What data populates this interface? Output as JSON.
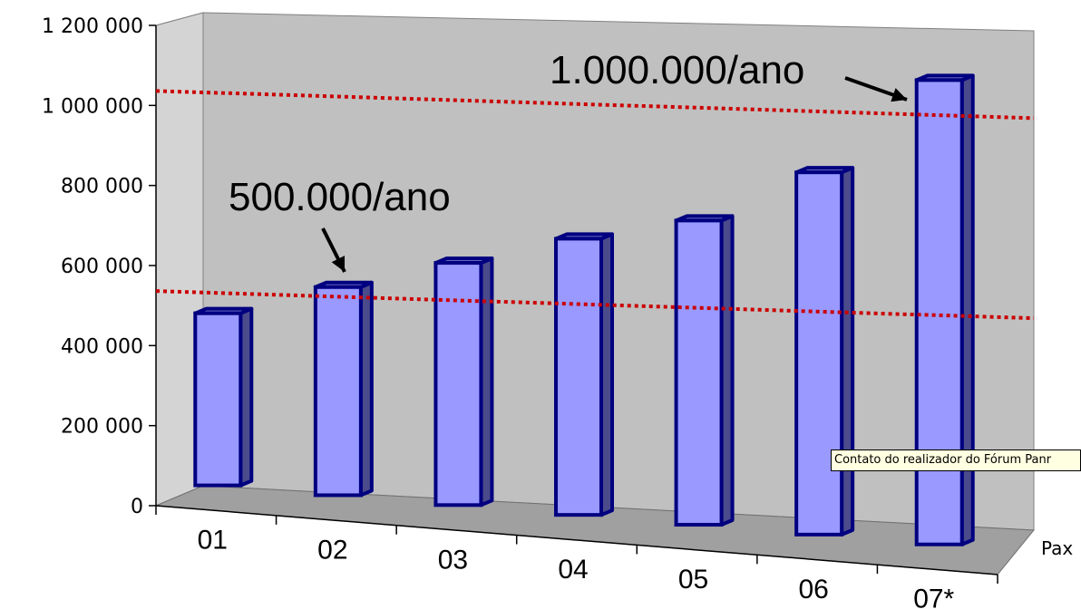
{
  "chart_data": {
    "type": "bar",
    "categories": [
      "01",
      "02",
      "03",
      "04",
      "05",
      "06",
      "07*"
    ],
    "values": [
      430000,
      520000,
      605000,
      690000,
      760000,
      905000,
      1160000
    ],
    "xlabel": "Pax",
    "ylim": [
      0,
      1200000
    ],
    "yticks": [
      "0",
      "200 000",
      "400 000",
      "600 000",
      "800 000",
      "1 000 000",
      "1 200 000"
    ],
    "reference_lines": [
      {
        "value": 500000,
        "label": "500.000/ano",
        "color": "#cc0000",
        "style": "dotted"
      },
      {
        "value": 1000000,
        "label": "1.000.000/ano",
        "color": "#cc0000",
        "style": "dotted"
      }
    ],
    "bar_face_color": "#9999ff",
    "bar_side_color": "#4b4b8c",
    "bar_edge_color": "#000080",
    "wall_color": "#c0c0c0",
    "floor_color": "#a0a0a0",
    "grid": false,
    "legend": "none"
  },
  "tooltip": {
    "text": "Contato do realizador do Fórum Panr"
  }
}
